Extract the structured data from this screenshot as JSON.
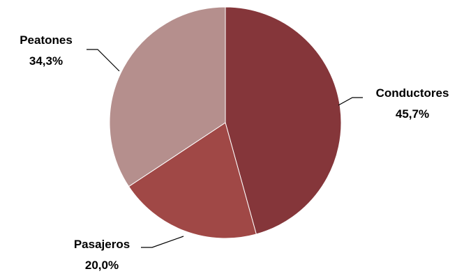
{
  "chart_data": {
    "type": "pie",
    "slices": [
      {
        "name": "Conductores",
        "value": 45.7,
        "label": "45,7%",
        "color": "#85363A"
      },
      {
        "name": "Pasajeros",
        "value": 20.0,
        "label": "20,0%",
        "color": "#A04846"
      },
      {
        "name": "Peatones",
        "value": 34.3,
        "label": "34,3%",
        "color": "#B58F8D"
      }
    ],
    "start": "top",
    "direction": "clockwise",
    "legend": "none"
  }
}
